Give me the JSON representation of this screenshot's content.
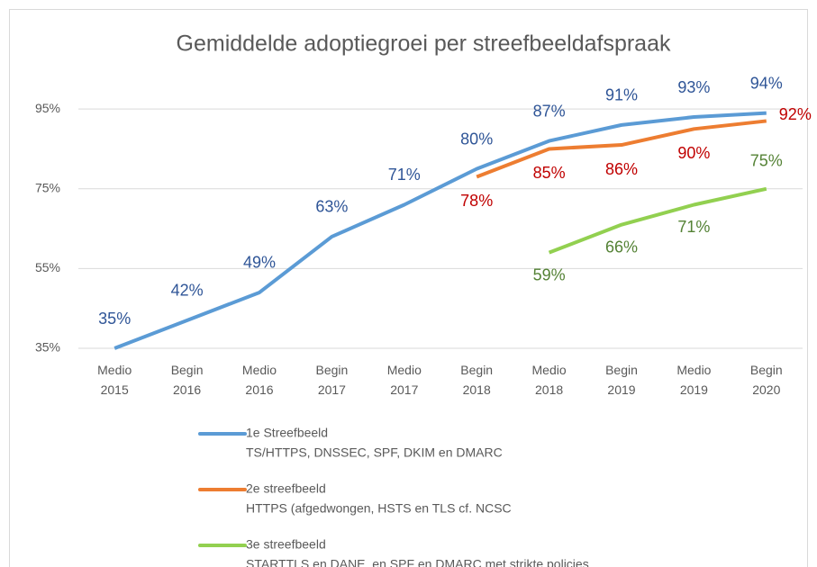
{
  "chart_data": {
    "type": "line",
    "title": "Gemiddelde adoptiegroei per streefbeeldafspraak",
    "categories": [
      "Medio 2015",
      "Begin 2016",
      "Medio 2016",
      "Begin 2017",
      "Medio 2017",
      "Begin 2018",
      "Medio 2018",
      "Begin 2019",
      "Medio 2019",
      "Begin 2020"
    ],
    "ylim": [
      35,
      100
    ],
    "yticks": [
      {
        "value": 35,
        "label": "35%"
      },
      {
        "value": 55,
        "label": "55%"
      },
      {
        "value": 75,
        "label": "75%"
      },
      {
        "value": 95,
        "label": "95%"
      }
    ],
    "grid": true,
    "series": [
      {
        "name": "1e Streefbeeld",
        "description": "TS/HTTPS, DNSSEC, SPF, DKIM en DMARC",
        "color": "#5b9bd5",
        "label_color": "#2f5597",
        "values": [
          35,
          42,
          49,
          63,
          71,
          80,
          87,
          91,
          93,
          94
        ],
        "value_labels": [
          "35%",
          "42%",
          "49%",
          "63%",
          "71%",
          "80%",
          "87%",
          "91%",
          "93%",
          "94%"
        ]
      },
      {
        "name": "2e streefbeeld",
        "description": "HTTPS (afgedwongen, HSTS en TLS cf. NCSC",
        "color": "#ed7d31",
        "label_color": "#c00000",
        "values": [
          null,
          null,
          null,
          null,
          null,
          78,
          85,
          86,
          90,
          92
        ],
        "value_labels": [
          null,
          null,
          null,
          null,
          null,
          "78%",
          "85%",
          "86%",
          "90%",
          "92%"
        ]
      },
      {
        "name": "3e streefbeeld",
        "description": "STARTTLS en DANE, en SPF en DMARC met strikte policies",
        "color": "#92d050",
        "label_color": "#548235",
        "values": [
          null,
          null,
          null,
          null,
          null,
          null,
          59,
          66,
          71,
          75
        ],
        "value_labels": [
          null,
          null,
          null,
          null,
          null,
          null,
          "59%",
          "66%",
          "71%",
          "75%"
        ]
      }
    ]
  }
}
